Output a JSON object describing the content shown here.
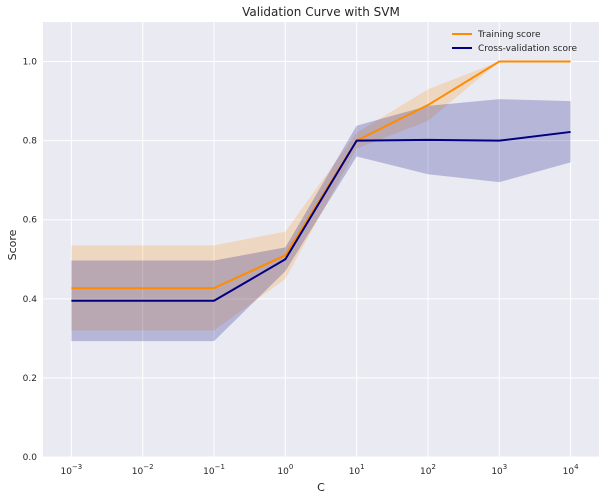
{
  "chart_data": {
    "type": "line",
    "title": "Validation Curve with SVM",
    "xlabel": "C",
    "ylabel": "Score",
    "xscale": "log",
    "x": [
      0.001,
      0.01,
      0.1,
      1,
      10,
      100,
      1000,
      10000
    ],
    "x_tick_labels": [
      {
        "base": "10",
        "exp": "−3"
      },
      {
        "base": "10",
        "exp": "−2"
      },
      {
        "base": "10",
        "exp": "−1"
      },
      {
        "base": "10",
        "exp": "0"
      },
      {
        "base": "10",
        "exp": "1"
      },
      {
        "base": "10",
        "exp": "2"
      },
      {
        "base": "10",
        "exp": "3"
      },
      {
        "base": "10",
        "exp": "4"
      }
    ],
    "xlim": [
      0.0004,
      25000
    ],
    "ylim": [
      0.0,
      1.1
    ],
    "y_ticks": [
      "0.0",
      "0.2",
      "0.4",
      "0.6",
      "0.8",
      "1.0"
    ],
    "grid": true,
    "legend_placement": "top-right",
    "series": [
      {
        "name": "Training score",
        "color": "#ff8c00",
        "values": [
          0.427,
          0.427,
          0.427,
          0.51,
          0.8,
          0.89,
          1.0,
          1.0
        ],
        "band_upper": [
          0.535,
          0.535,
          0.535,
          0.57,
          0.82,
          0.93,
          1.0,
          1.0
        ],
        "band_lower": [
          0.32,
          0.32,
          0.32,
          0.45,
          0.78,
          0.85,
          1.0,
          1.0
        ]
      },
      {
        "name": "Cross-validation score",
        "color": "#000080",
        "values": [
          0.395,
          0.395,
          0.395,
          0.5,
          0.8,
          0.802,
          0.8,
          0.822
        ],
        "band_upper": [
          0.497,
          0.497,
          0.497,
          0.53,
          0.838,
          0.888,
          0.905,
          0.9
        ],
        "band_lower": [
          0.293,
          0.293,
          0.293,
          0.47,
          0.76,
          0.715,
          0.695,
          0.745
        ]
      }
    ]
  }
}
